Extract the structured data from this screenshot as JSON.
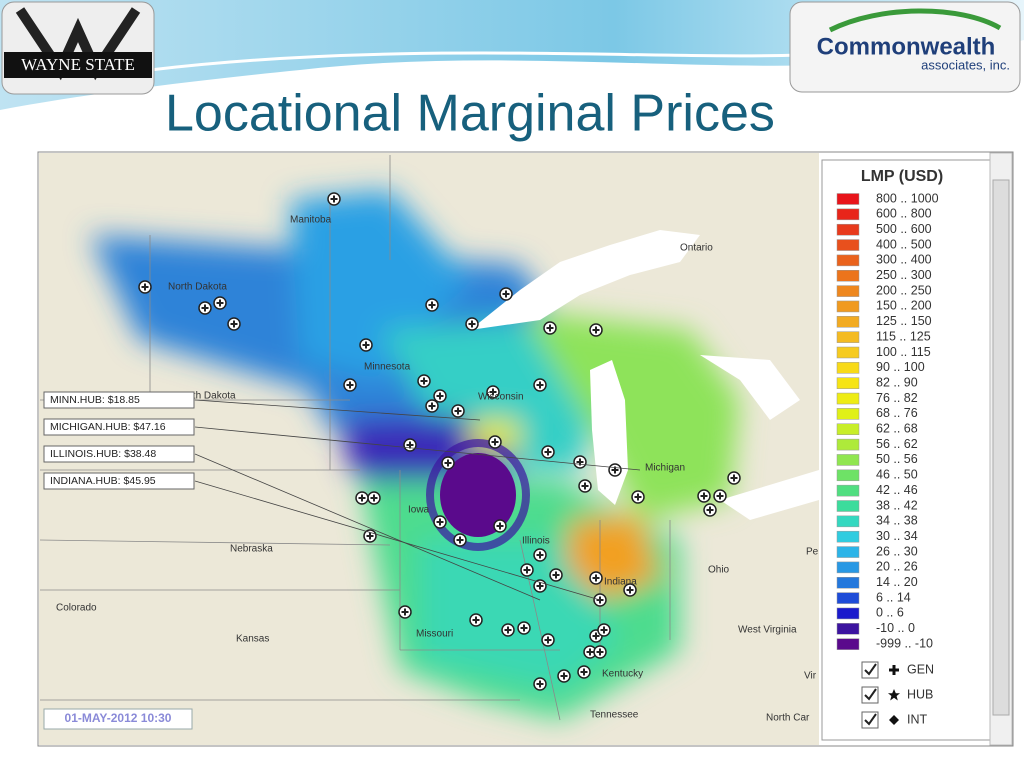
{
  "header": {
    "logo_left": "WAYNE STATE",
    "logo_right": "Commonwealth",
    "logo_right_sub": "associates, inc.",
    "title": "Locational Marginal Prices"
  },
  "map": {
    "places": [
      "Manitoba",
      "Ontario",
      "North Dakota",
      "Minnesota",
      "South Dakota",
      "Wisconsin",
      "Michigan",
      "Iowa",
      "Nebraska",
      "Illinois",
      "Indiana",
      "Ohio",
      "Colorado",
      "Kansas",
      "Missouri",
      "West Virginia",
      "Kentucky",
      "Tennessee",
      "North Car",
      "Pe",
      "Vir"
    ],
    "hubs": [
      "MINN.HUB: $18.85",
      "MICHIGAN.HUB: $47.16",
      "ILLINOIS.HUB: $38.48",
      "INDIANA.HUB: $45.95"
    ],
    "timestamp": "01-MAY-2012 10:30",
    "legend": {
      "title": "LMP (USD)",
      "items": [
        {
          "label": "800 .. 1000",
          "color": "#e8141a"
        },
        {
          "label": "600 .. 800",
          "color": "#e8251a"
        },
        {
          "label": "500 .. 600",
          "color": "#e83a1c"
        },
        {
          "label": "400 .. 500",
          "color": "#e8501d"
        },
        {
          "label": "300 .. 400",
          "color": "#ea621c"
        },
        {
          "label": "250 .. 300",
          "color": "#ec741c"
        },
        {
          "label": "200 .. 250",
          "color": "#ee871e"
        },
        {
          "label": "150 .. 200",
          "color": "#f09a20"
        },
        {
          "label": "125 .. 150",
          "color": "#f2ab22"
        },
        {
          "label": "115 .. 125",
          "color": "#f4bb22"
        },
        {
          "label": "100 .. 115",
          "color": "#f6cb20"
        },
        {
          "label": "90 .. 100",
          "color": "#f8da18"
        },
        {
          "label": "82 .. 90",
          "color": "#f6e414"
        },
        {
          "label": "76 .. 82",
          "color": "#eeec14"
        },
        {
          "label": "68 .. 76",
          "color": "#e0f018"
        },
        {
          "label": "62 .. 68",
          "color": "#c8ee28"
        },
        {
          "label": "56 .. 62",
          "color": "#aeea3a"
        },
        {
          "label": "50 .. 56",
          "color": "#90e650"
        },
        {
          "label": "46 .. 50",
          "color": "#6ee266"
        },
        {
          "label": "42 .. 46",
          "color": "#50de80"
        },
        {
          "label": "38 .. 42",
          "color": "#3cdc9c"
        },
        {
          "label": "34 .. 38",
          "color": "#34d8c0"
        },
        {
          "label": "30 .. 34",
          "color": "#30cce0"
        },
        {
          "label": "26 .. 30",
          "color": "#2cb4e8"
        },
        {
          "label": "20 .. 26",
          "color": "#2898e4"
        },
        {
          "label": "14 .. 20",
          "color": "#2478dc"
        },
        {
          "label": "6 .. 14",
          "color": "#1e4cd8"
        },
        {
          "label": "0 .. 6",
          "color": "#1a1acc"
        },
        {
          "label": "-10 .. 0",
          "color": "#3c14a0"
        },
        {
          "label": "-999 .. -10",
          "color": "#5a0a8c"
        }
      ],
      "toggles": [
        "GEN",
        "HUB",
        "INT"
      ]
    }
  }
}
